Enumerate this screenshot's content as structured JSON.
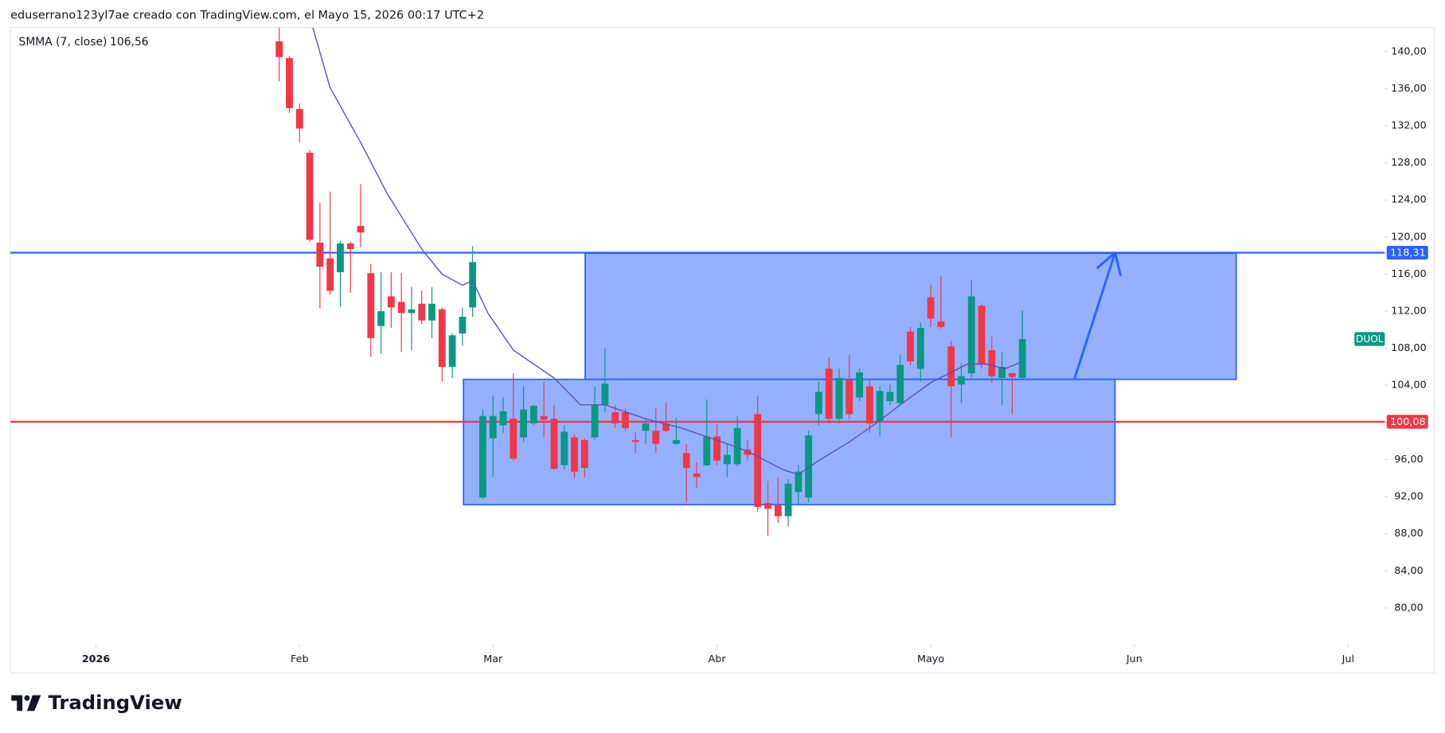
{
  "header": "eduserrano123yl7ae creado con TradingView.com, el Mayo 15, 2026 00:17 UTC+2",
  "logo": "TradingView",
  "chart_data": {
    "type": "candlestick",
    "symbol": "DUOL",
    "up_color": "#089981",
    "down_color": "#f23645",
    "xlim": [
      -8.4,
      126.6
    ],
    "ylim": [
      76.05,
      142.58
    ],
    "xticks": [
      {
        "value": 0,
        "label": "2026"
      },
      {
        "value": 20,
        "label": "Feb"
      },
      {
        "value": 39,
        "label": "Mar"
      },
      {
        "value": 61,
        "label": "Abr"
      },
      {
        "value": 82,
        "label": "Mayo"
      },
      {
        "value": 102,
        "label": "Jun"
      },
      {
        "value": 123,
        "label": "Jul"
      }
    ],
    "yticks": [
      {
        "value": 80,
        "label": "80,00"
      },
      {
        "value": 84,
        "label": "84,00"
      },
      {
        "value": 88,
        "label": "88,00"
      },
      {
        "value": 92,
        "label": "92,00"
      },
      {
        "value": 96,
        "label": "96,00"
      },
      {
        "value": 100,
        "label": "100,00"
      },
      {
        "value": 104,
        "label": "104,00"
      },
      {
        "value": 108,
        "label": "108,00"
      },
      {
        "value": 112,
        "label": "112,00"
      },
      {
        "value": 116,
        "label": "116,00"
      },
      {
        "value": 120,
        "label": "120,00"
      },
      {
        "value": 124,
        "label": "124,00"
      },
      {
        "value": 128,
        "label": "128,00"
      },
      {
        "value": 132,
        "label": "132,00"
      },
      {
        "value": 136,
        "label": "136,00"
      },
      {
        "value": 140,
        "label": "140,00"
      }
    ],
    "x": [
      18,
      19,
      20,
      21,
      22,
      23,
      24,
      25,
      26,
      27,
      28,
      29,
      30,
      31,
      32,
      33,
      34,
      35,
      36,
      37,
      38,
      39,
      40,
      41,
      42,
      43,
      44,
      45,
      46,
      47,
      48,
      49,
      50,
      51,
      52,
      53,
      54,
      55,
      56,
      57,
      58,
      59,
      60,
      61,
      62,
      63,
      64,
      65,
      66,
      67,
      68,
      69,
      70,
      71,
      72,
      73,
      74,
      75,
      76,
      77,
      78,
      79,
      80,
      81,
      82,
      83,
      84,
      85,
      86,
      87,
      88,
      89,
      90,
      91
    ],
    "open": [
      141.1,
      139.3,
      133.8,
      129.1,
      119.4,
      117.7,
      116.2,
      119.3,
      121.2,
      116.1,
      110.4,
      113.6,
      113.0,
      111.8,
      112.8,
      111.0,
      112.2,
      106.0,
      109.6,
      112.4,
      91.9,
      98.3,
      99.7,
      100.4,
      98.4,
      99.9,
      100.7,
      100.4,
      95.4,
      98.4,
      98.1,
      98.4,
      101.9,
      101.1,
      101.1,
      98.1,
      99.1,
      99.1,
      99.9,
      97.7,
      96.7,
      94.5,
      95.4,
      98.5,
      95.5,
      95.5,
      97.1,
      100.9,
      91.3,
      91.1,
      89.9,
      92.5,
      91.9,
      100.9,
      105.8,
      100.4,
      104.6,
      102.7,
      103.9,
      100.1,
      102.3,
      102.1,
      109.8,
      105.8,
      113.5,
      110.9,
      108.2,
      104.1,
      105.3,
      112.6,
      107.8,
      104.8,
      105.3,
      104.8
    ],
    "high": [
      143.5,
      139.5,
      134.4,
      129.4,
      123.7,
      124.9,
      119.6,
      119.5,
      125.7,
      117.1,
      116.2,
      116.2,
      116.1,
      114.6,
      114.2,
      114.6,
      112.4,
      109.6,
      112.4,
      119.0,
      101.4,
      102.9,
      102.7,
      105.3,
      103.9,
      101.9,
      104.4,
      101.9,
      99.7,
      98.7,
      98.3,
      103.9,
      108.0,
      101.9,
      101.5,
      98.9,
      100.3,
      101.6,
      102.1,
      100.5,
      97.7,
      95.7,
      102.5,
      99.9,
      97.7,
      100.7,
      98.1,
      102.9,
      93.7,
      94.1,
      93.9,
      95.4,
      99.1,
      104.4,
      107.0,
      105.8,
      107.3,
      105.8,
      104.6,
      103.9,
      104.1,
      107.3,
      110.3,
      110.8,
      114.8,
      115.8,
      108.8,
      106.3,
      115.4,
      112.8,
      109.3,
      107.6,
      105.4,
      112.1
    ],
    "low": [
      136.8,
      133.4,
      130.2,
      119.5,
      112.3,
      113.8,
      112.5,
      114.0,
      118.9,
      107.1,
      107.4,
      110.2,
      107.6,
      107.8,
      110.6,
      109.1,
      104.4,
      104.8,
      108.3,
      111.4,
      91.7,
      94.1,
      98.9,
      95.9,
      97.9,
      99.7,
      98.4,
      94.9,
      94.9,
      94.0,
      94.1,
      98.1,
      101.1,
      99.4,
      99.1,
      96.7,
      97.7,
      96.7,
      98.9,
      97.6,
      91.4,
      92.9,
      95.3,
      95.4,
      94.1,
      95.3,
      95.9,
      90.4,
      87.8,
      89.2,
      88.8,
      91.2,
      91.4,
      99.7,
      99.9,
      99.9,
      100.4,
      102.3,
      98.9,
      98.5,
      101.9,
      101.9,
      106.2,
      104.4,
      110.3,
      110.1,
      98.4,
      102.1,
      104.8,
      105.8,
      104.3,
      101.9,
      100.9,
      104.6
    ],
    "close": [
      139.4,
      133.9,
      131.7,
      119.7,
      116.8,
      114.2,
      119.3,
      118.7,
      120.5,
      109.1,
      112.0,
      112.4,
      111.8,
      112.2,
      111.0,
      112.8,
      106.0,
      109.4,
      111.4,
      117.3,
      100.7,
      100.7,
      101.2,
      96.1,
      101.4,
      101.8,
      100.3,
      95.0,
      99.0,
      94.7,
      95.1,
      101.9,
      104.2,
      99.9,
      99.4,
      97.9,
      99.9,
      97.7,
      99.1,
      98.1,
      95.1,
      94.1,
      98.5,
      95.9,
      96.5,
      99.4,
      96.5,
      90.9,
      90.7,
      89.9,
      93.4,
      94.7,
      98.6,
      103.3,
      100.4,
      104.8,
      100.9,
      105.4,
      99.9,
      103.4,
      103.3,
      106.2,
      106.6,
      110.2,
      111.2,
      110.3,
      103.9,
      105.0,
      113.6,
      106.3,
      105.0,
      106.0,
      104.9,
      109.0
    ],
    "smma": {
      "name": "SMMA (7, close)",
      "color": "#5e4fb3",
      "legend_value": {
        "value": 106.56,
        "label": "106,56"
      },
      "x": [
        21.3,
        23,
        26,
        28.6,
        32,
        34,
        36,
        37,
        38.5,
        41,
        45,
        47.6,
        50,
        54,
        57.5,
        61,
        64,
        67.5,
        69,
        71,
        74,
        76.6,
        79,
        82,
        83.8,
        85.6,
        87.5,
        89.3,
        91
      ],
      "values": [
        142.6,
        136.1,
        130.2,
        124.7,
        118.7,
        116.0,
        114.8,
        115.3,
        111.8,
        107.8,
        104.8,
        101.9,
        101.9,
        100.4,
        99.4,
        98.1,
        96.9,
        94.9,
        94.4,
        95.9,
        97.9,
        99.9,
        101.9,
        104.3,
        105.3,
        106.3,
        106.3,
        105.8,
        106.56
      ]
    },
    "hlines": [
      {
        "value": 118.31,
        "label": "118,31",
        "color": "#2962ff"
      },
      {
        "value": 100.08,
        "label": "100,08",
        "color": "#f23645"
      }
    ],
    "rectangles": [
      {
        "x": [
          36.1,
          100.1
        ],
        "y": [
          91.14,
          104.65
        ]
      },
      {
        "x": [
          48.05,
          112.0
        ],
        "y": [
          104.65,
          118.25
        ]
      }
    ],
    "arrow": {
      "x": [
        96.1,
        100.1
      ],
      "y": [
        104.65,
        118.31
      ]
    }
  }
}
